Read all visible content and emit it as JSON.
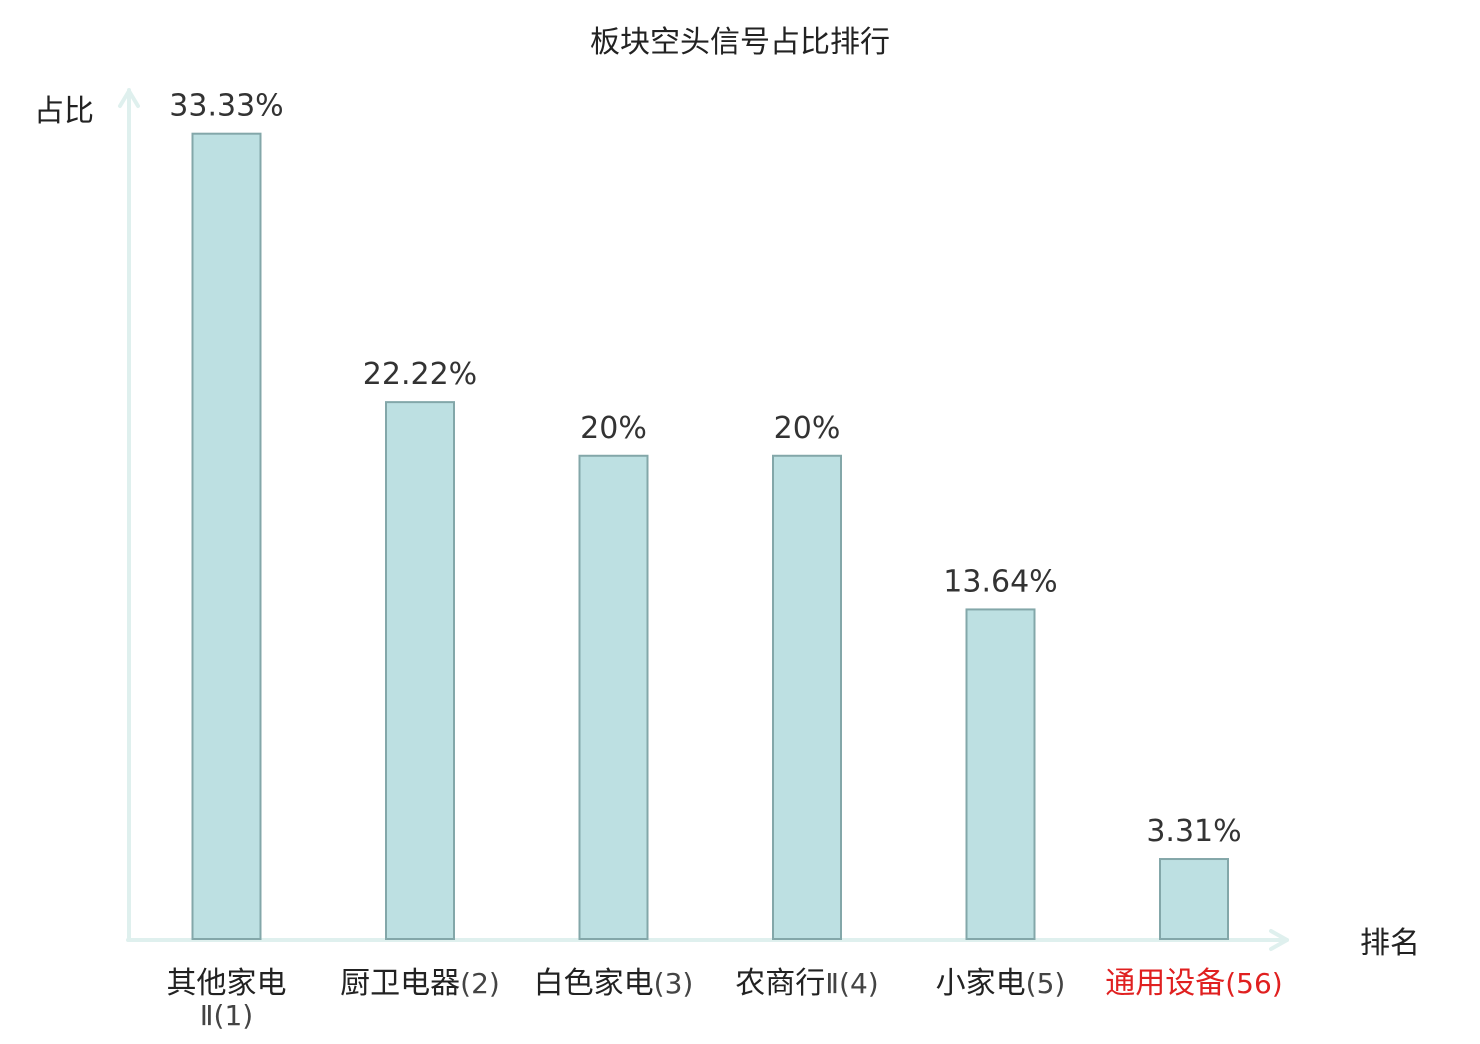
{
  "chart_data": {
    "type": "bar",
    "title": "板块空头信号占比排行",
    "xlabel": "排名",
    "ylabel": "占比",
    "categories": [
      "其他家电Ⅱ(1)",
      "厨卫电器(2)",
      "白色家电(3)",
      "农商行Ⅱ(4)",
      "小家电(5)",
      "通用设备(56)"
    ],
    "category_labels": [
      {
        "name": "其他家电",
        "suffix": "Ⅱ(1)",
        "wrap": true
      },
      {
        "name": "厨卫电器",
        "suffix": "(2)",
        "wrap": false
      },
      {
        "name": "白色家电",
        "suffix": "(3)",
        "wrap": false
      },
      {
        "name": "农商行",
        "suffix": "Ⅱ(4)",
        "wrap": false
      },
      {
        "name": "小家电",
        "suffix": "(5)",
        "wrap": false
      },
      {
        "name": "通用设备",
        "suffix": "(56)",
        "wrap": false
      }
    ],
    "values": [
      33.33,
      22.22,
      20,
      20,
      13.64,
      3.31
    ],
    "value_labels": [
      "33.33%",
      "22.22%",
      "20%",
      "20%",
      "13.64%",
      "3.31%"
    ],
    "highlight_index": 5,
    "ylim": [
      0,
      34.6
    ],
    "grid": false,
    "colors": {
      "bar_fill": "#bde0e2",
      "bar_stroke": "#83a7a9",
      "axis": "#dff0ee",
      "text": "#222222",
      "value_text": "#333333",
      "suffix_text": "#444444",
      "highlight": "#e02020"
    }
  }
}
